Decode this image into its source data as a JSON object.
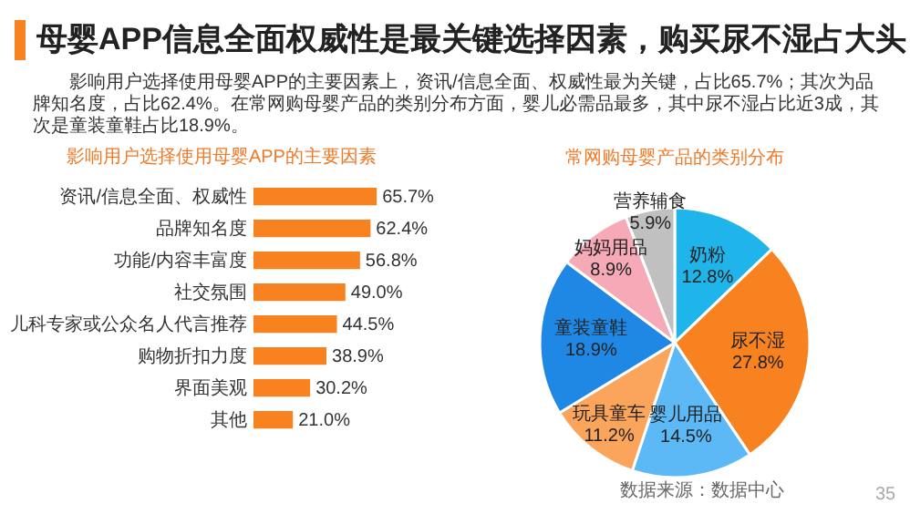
{
  "chart_data": [
    {
      "type": "other",
      "title": "母婴APP信息全面权威性是最关键选择因素，购买尿不湿占大头",
      "subtitle": "影响用户选择使用母婴APP的主要因素上，资讯/信息全面、权威性最为关键，占比65.7%；其次为品牌知名度，占比62.4%。在常网购母婴产品的类别分布方面，婴儿必需品最多，其中尿不湿占比近3成，其次是童装童鞋占比18.9%。"
    },
    {
      "type": "bar",
      "orientation": "horizontal",
      "title": "影响用户选择使用母婴APP的主要因素",
      "categories": [
        "资讯/信息全面、权威性",
        "品牌知名度",
        "功能/内容丰富度",
        "社交氛围",
        "儿科专家或公众名人代言推荐",
        "购物折扣力度",
        "界面美观",
        "其他"
      ],
      "values": [
        65.7,
        62.4,
        56.8,
        49.0,
        44.5,
        38.9,
        30.2,
        21.0
      ],
      "value_labels": [
        "65.7%",
        "62.4%",
        "56.8%",
        "49.0%",
        "44.5%",
        "38.9%",
        "30.2%",
        "21.0%"
      ],
      "color": "#f7821f"
    },
    {
      "type": "pie",
      "title": "常网购母婴产品的类别分布",
      "categories": [
        "奶粉",
        "尿不湿",
        "婴儿用品",
        "玩具童车",
        "童装童鞋",
        "妈妈用品",
        "营养辅食"
      ],
      "values": [
        12.8,
        27.8,
        14.5,
        11.2,
        18.9,
        8.9,
        5.9
      ],
      "value_labels": [
        "12.8%",
        "27.8%",
        "14.5%",
        "11.2%",
        "18.9%",
        "8.9%",
        "5.9%"
      ],
      "colors": [
        "#1fb4ea",
        "#f7821f",
        "#5cb9f5",
        "#fba45c",
        "#1f88e5",
        "#f6a9b7",
        "#c0c0c0"
      ],
      "annotations": [
        "数据来源：数据中心",
        "35"
      ]
    }
  ]
}
